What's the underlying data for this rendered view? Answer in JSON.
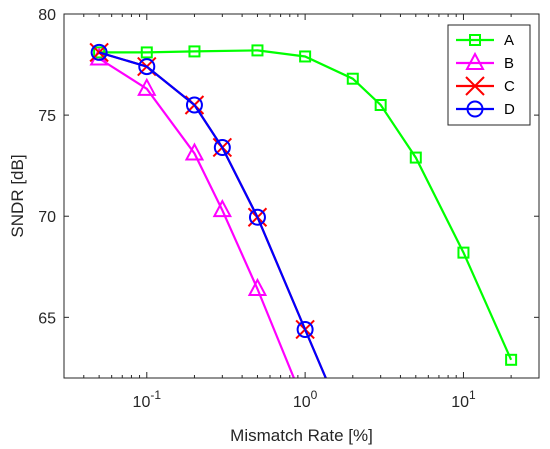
{
  "chart_data": {
    "type": "line",
    "xlabel": "Mismatch Rate [%]",
    "ylabel": "SNDR [dB]",
    "xscale": "log",
    "xlim": [
      0.03,
      30
    ],
    "ylim": [
      62,
      80
    ],
    "yticks": [
      65,
      70,
      75,
      80
    ],
    "xticks": [
      {
        "value": 0.1,
        "base": "10",
        "exp": "-1"
      },
      {
        "value": 1,
        "base": "10",
        "exp": "0"
      },
      {
        "value": 10,
        "base": "10",
        "exp": "1"
      }
    ],
    "grid": false,
    "legend_position": "top-right",
    "series": [
      {
        "name": "A",
        "color": "#00ff00",
        "marker": "square",
        "x": [
          0.05,
          0.1,
          0.2,
          0.5,
          1,
          2,
          3,
          5,
          10,
          20
        ],
        "y": [
          78.1,
          78.1,
          78.15,
          78.2,
          77.9,
          76.8,
          75.5,
          72.9,
          68.2,
          62.9
        ]
      },
      {
        "name": "B",
        "color": "#ff00ff",
        "marker": "triangle",
        "x": [
          0.05,
          0.1,
          0.2,
          0.3,
          0.5,
          0.85
        ],
        "y": [
          77.8,
          76.3,
          73.1,
          70.3,
          66.4,
          62.0
        ],
        "marked_points": 5
      },
      {
        "name": "C",
        "color": "#ff0000",
        "marker": "x",
        "x": [
          0.05,
          0.1,
          0.2,
          0.3,
          0.5,
          1,
          1.35
        ],
        "y": [
          78.1,
          77.4,
          75.5,
          73.4,
          69.95,
          64.4,
          62.0
        ],
        "marked_points": 6
      },
      {
        "name": "D",
        "color": "#0000ff",
        "marker": "circle",
        "x": [
          0.05,
          0.1,
          0.2,
          0.3,
          0.5,
          1,
          1.35
        ],
        "y": [
          78.1,
          77.4,
          75.5,
          73.4,
          69.95,
          64.4,
          62.0
        ],
        "marked_points": 6
      }
    ]
  }
}
